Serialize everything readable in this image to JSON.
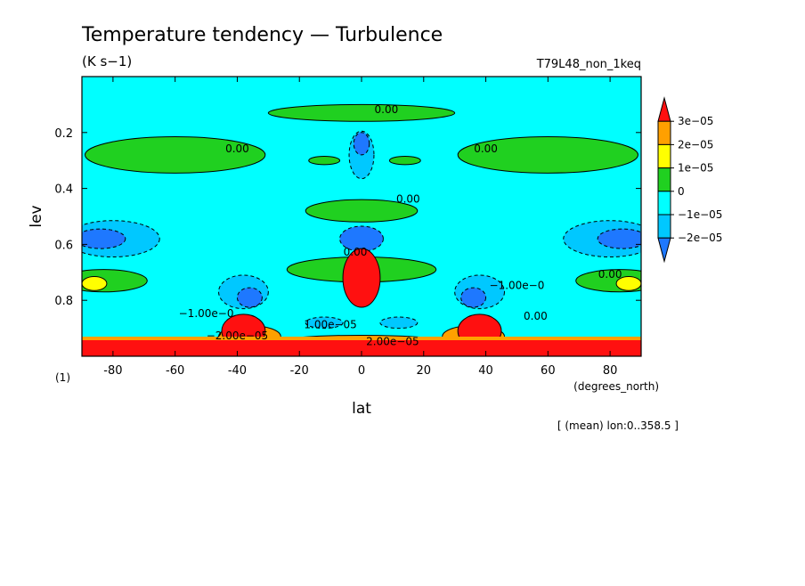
{
  "chart_data": {
    "type": "heatmap",
    "title": "Temperature tendency — Turbulence",
    "units": "(K s−1)",
    "experiment": "T79L48_non_1keq",
    "xlabel": "lat",
    "xunits": "(degrees_north)",
    "ylabel": "lev",
    "yunits": "(1)",
    "footnote": "[ (mean) lon:0..358.5 ]",
    "xlim": [
      -90,
      90
    ],
    "ylim": [
      1.0,
      0.0
    ],
    "x_ticks": [
      -80,
      -60,
      -40,
      -20,
      0,
      20,
      40,
      60,
      80
    ],
    "y_ticks": [
      0.2,
      0.4,
      0.6,
      0.8
    ],
    "y_tick_labels": [
      "0.2",
      "0.4",
      "0.6",
      "0.8"
    ],
    "colorbar": {
      "levels": [
        -2e-05,
        -1e-05,
        0,
        1e-05,
        2e-05,
        3e-05
      ],
      "labels": [
        "−2e−05",
        "−1e−05",
        "0",
        "1e−05",
        "2e−05",
        "3e−05"
      ],
      "colors": [
        "#1e78ff",
        "#00c8ff",
        "#00ffff",
        "#20d020",
        "#ffff00",
        "#ffa000",
        "#ff1010"
      ]
    },
    "contour_labels": [
      {
        "text": "0.00",
        "lat": 8,
        "lev": 0.13
      },
      {
        "text": "0.00",
        "lat": -40,
        "lev": 0.27
      },
      {
        "text": "0.00",
        "lat": 40,
        "lev": 0.27
      },
      {
        "text": "0.00",
        "lat": 15,
        "lev": 0.45
      },
      {
        "text": "0.00",
        "lat": -2,
        "lev": 0.64
      },
      {
        "text": "0.00",
        "lat": 80,
        "lev": 0.72
      },
      {
        "text": "−1.00e−0",
        "lat": 50,
        "lev": 0.76
      },
      {
        "text": "−1.00e−0",
        "lat": -50,
        "lev": 0.86
      },
      {
        "text": "0.00",
        "lat": 56,
        "lev": 0.87
      },
      {
        "text": "1.00e−05",
        "lat": -10,
        "lev": 0.9
      },
      {
        "text": "−2.00e−05",
        "lat": -40,
        "lev": 0.94
      },
      {
        "text": "2.00e−05",
        "lat": 10,
        "lev": 0.96
      }
    ],
    "fields": [
      {
        "level": 0,
        "regions": [
          {
            "lat": 0,
            "lev": 0.13,
            "w": 60,
            "h": 0.06
          },
          {
            "lat": -60,
            "lev": 0.28,
            "w": 58,
            "h": 0.13
          },
          {
            "lat": 60,
            "lev": 0.28,
            "w": 58,
            "h": 0.13
          },
          {
            "lat": -12,
            "lev": 0.3,
            "w": 10,
            "h": 0.03
          },
          {
            "lat": 14,
            "lev": 0.3,
            "w": 10,
            "h": 0.03
          },
          {
            "lat": 0,
            "lev": 0.48,
            "w": 36,
            "h": 0.08
          },
          {
            "lat": 0,
            "lev": 0.69,
            "w": 48,
            "h": 0.09
          },
          {
            "lat": -83,
            "lev": 0.73,
            "w": 28,
            "h": 0.08
          },
          {
            "lat": 83,
            "lev": 0.73,
            "w": 28,
            "h": 0.08
          }
        ]
      },
      {
        "level": -1,
        "regions": [
          {
            "lat": 0,
            "lev": 0.28,
            "w": 8,
            "h": 0.17
          },
          {
            "lat": -80,
            "lev": 0.58,
            "w": 30,
            "h": 0.13
          },
          {
            "lat": 80,
            "lev": 0.58,
            "w": 30,
            "h": 0.13
          },
          {
            "lat": -38,
            "lev": 0.77,
            "w": 16,
            "h": 0.12
          },
          {
            "lat": 38,
            "lev": 0.77,
            "w": 16,
            "h": 0.12
          },
          {
            "lat": -12,
            "lev": 0.88,
            "w": 12,
            "h": 0.04
          },
          {
            "lat": 12,
            "lev": 0.88,
            "w": 12,
            "h": 0.04
          }
        ]
      },
      {
        "level": -2,
        "regions": [
          {
            "lat": 0,
            "lev": 0.58,
            "w": 14,
            "h": 0.09
          },
          {
            "lat": -84,
            "lev": 0.58,
            "w": 16,
            "h": 0.07
          },
          {
            "lat": 84,
            "lev": 0.58,
            "w": 16,
            "h": 0.07
          },
          {
            "lat": -36,
            "lev": 0.79,
            "w": 8,
            "h": 0.07
          },
          {
            "lat": 36,
            "lev": 0.79,
            "w": 8,
            "h": 0.07
          },
          {
            "lat": 0,
            "lev": 0.24,
            "w": 5,
            "h": 0.08
          }
        ]
      },
      {
        "level": 1,
        "regions": [
          {
            "lat": -86,
            "lev": 0.74,
            "w": 8,
            "h": 0.05
          },
          {
            "lat": 86,
            "lev": 0.74,
            "w": 8,
            "h": 0.05
          }
        ]
      },
      {
        "level": 2,
        "regions": [
          {
            "lat": 0,
            "lev": 0.95,
            "w": 56,
            "h": 0.05
          },
          {
            "lat": -36,
            "lev": 0.93,
            "w": 20,
            "h": 0.08
          },
          {
            "lat": 36,
            "lev": 0.93,
            "w": 20,
            "h": 0.08
          }
        ]
      },
      {
        "level": 3,
        "regions": [
          {
            "lat": 0,
            "lev": 0.72,
            "w": 12,
            "h": 0.21
          },
          {
            "lat": -38,
            "lev": 0.91,
            "w": 14,
            "h": 0.12
          },
          {
            "lat": 38,
            "lev": 0.91,
            "w": 14,
            "h": 0.12
          },
          {
            "lat": 14,
            "lev": 0.96,
            "w": 8,
            "h": 0.02
          }
        ]
      }
    ]
  }
}
